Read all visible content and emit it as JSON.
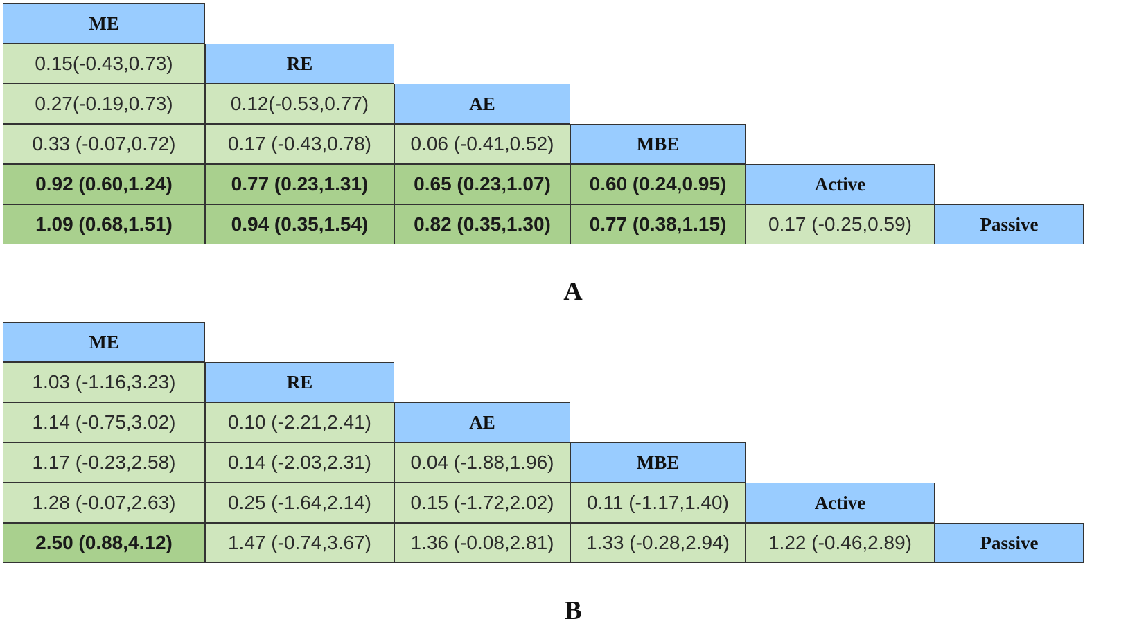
{
  "panels": [
    {
      "label": "A",
      "treatments": [
        "ME",
        "RE",
        "AE",
        "MBE",
        "Active",
        "Passive"
      ],
      "rows": [
        [],
        [
          {
            "text": "0.15(-0.43,0.73)",
            "significant": false
          }
        ],
        [
          {
            "text": "0.27(-0.19,0.73)",
            "significant": false
          },
          {
            "text": "0.12(-0.53,0.77)",
            "significant": false
          }
        ],
        [
          {
            "text": "0.33 (-0.07,0.72)",
            "significant": false
          },
          {
            "text": "0.17 (-0.43,0.78)",
            "significant": false
          },
          {
            "text": "0.06 (-0.41,0.52)",
            "significant": false
          }
        ],
        [
          {
            "text": "0.92 (0.60,1.24)",
            "significant": true
          },
          {
            "text": "0.77 (0.23,1.31)",
            "significant": true
          },
          {
            "text": "0.65 (0.23,1.07)",
            "significant": true
          },
          {
            "text": "0.60 (0.24,0.95)",
            "significant": true
          }
        ],
        [
          {
            "text": "1.09 (0.68,1.51)",
            "significant": true
          },
          {
            "text": "0.94 (0.35,1.54)",
            "significant": true
          },
          {
            "text": "0.82 (0.35,1.30)",
            "significant": true
          },
          {
            "text": "0.77 (0.38,1.15)",
            "significant": true
          },
          {
            "text": "0.17 (-0.25,0.59)",
            "significant": false
          }
        ]
      ]
    },
    {
      "label": "B",
      "treatments": [
        "ME",
        "RE",
        "AE",
        "MBE",
        "Active",
        "Passive"
      ],
      "rows": [
        [],
        [
          {
            "text": "1.03 (-1.16,3.23)",
            "significant": false
          }
        ],
        [
          {
            "text": "1.14 (-0.75,3.02)",
            "significant": false
          },
          {
            "text": "0.10 (-2.21,2.41)",
            "significant": false
          }
        ],
        [
          {
            "text": "1.17 (-0.23,2.58)",
            "significant": false
          },
          {
            "text": "0.14 (-2.03,2.31)",
            "significant": false
          },
          {
            "text": "0.04 (-1.88,1.96)",
            "significant": false
          }
        ],
        [
          {
            "text": "1.28 (-0.07,2.63)",
            "significant": false
          },
          {
            "text": "0.25 (-1.64,2.14)",
            "significant": false
          },
          {
            "text": "0.15 (-1.72,2.02)",
            "significant": false
          },
          {
            "text": "0.11 (-1.17,1.40)",
            "significant": false
          }
        ],
        [
          {
            "text": "2.50 (0.88,4.12)",
            "significant": true
          },
          {
            "text": "1.47 (-0.74,3.67)",
            "significant": false
          },
          {
            "text": "1.36 (-0.08,2.81)",
            "significant": false
          },
          {
            "text": "1.33 (-0.28,2.94)",
            "significant": false
          },
          {
            "text": "1.22 (-0.46,2.89)",
            "significant": false
          }
        ]
      ]
    }
  ],
  "colors": {
    "header": "#99ccff",
    "cell": "#cfe6bd",
    "significant_cell": "#a9d08e",
    "border": "#333333"
  }
}
